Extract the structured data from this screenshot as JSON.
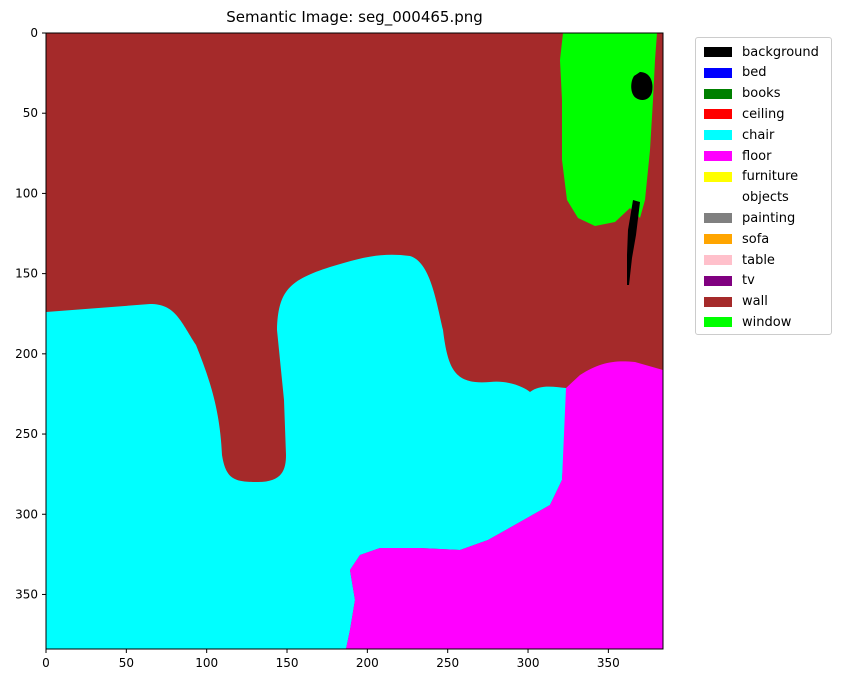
{
  "title": "Semantic Image: seg_000465.png",
  "axes": {
    "xlim": [
      0,
      384
    ],
    "ylim": [
      384,
      0
    ],
    "x_ticks": [
      0,
      50,
      100,
      150,
      200,
      250,
      300,
      350
    ],
    "y_ticks": [
      0,
      50,
      100,
      150,
      200,
      250,
      300,
      350
    ]
  },
  "legend": {
    "placement": "outside-top-right",
    "items": [
      {
        "label": "background",
        "color": "#000000"
      },
      {
        "label": "bed",
        "color": "#0000ff"
      },
      {
        "label": "books",
        "color": "#008000"
      },
      {
        "label": "ceiling",
        "color": "#ff0000"
      },
      {
        "label": "chair",
        "color": "#00ffff"
      },
      {
        "label": "floor",
        "color": "#ff00ff"
      },
      {
        "label": "furniture",
        "color": "#ffff00"
      },
      {
        "label": "objects",
        "color": "#ffffff"
      },
      {
        "label": "painting",
        "color": "#808080"
      },
      {
        "label": "sofa",
        "color": "#ffa500"
      },
      {
        "label": "table",
        "color": "#ffc0cb"
      },
      {
        "label": "tv",
        "color": "#800080"
      },
      {
        "label": "wall",
        "color": "#a52a2a"
      },
      {
        "label": "window",
        "color": "#00ff00"
      }
    ]
  }
}
